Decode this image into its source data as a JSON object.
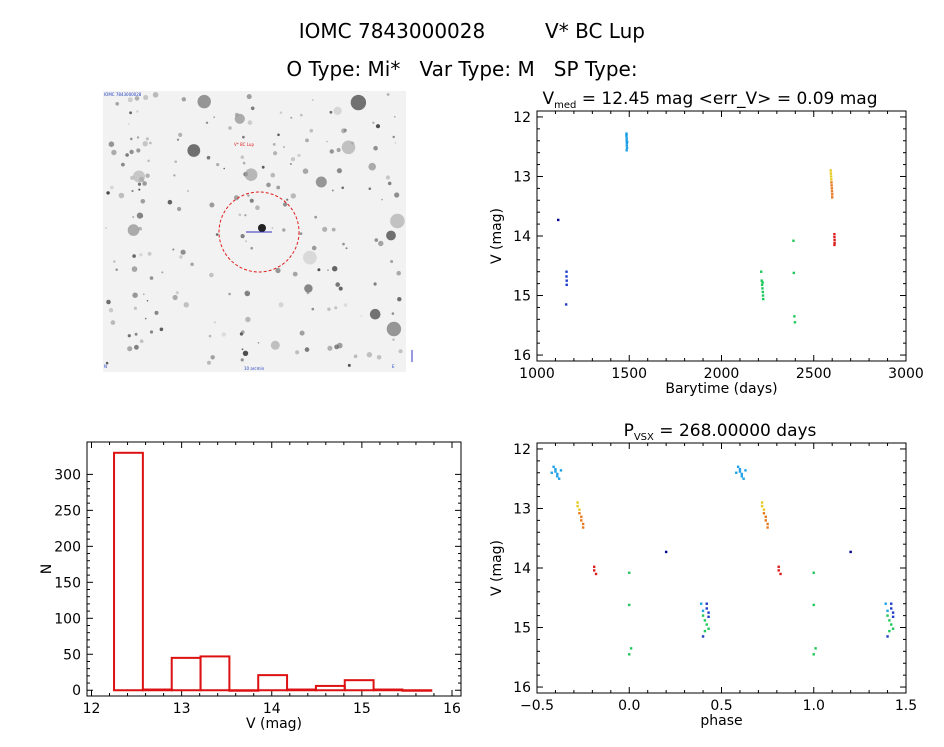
{
  "header": {
    "line1_left": "IOMC 7843000028",
    "line1_right": "V* BC Lup",
    "line2": "O Type: Mi*   Var Type: M   SP Type:"
  },
  "image_panel": {
    "overlay_top_left": "IOMC 7843000028",
    "overlay_target": "V* BC Lup",
    "overlay_bottom_center": "10 arcmin",
    "overlay_bottom_left": "N",
    "overlay_bottom_right": "E"
  },
  "chart_data": [
    {
      "id": "lightcurve",
      "type": "scatter",
      "title_prefix": "V",
      "title_sub": "med",
      "title_rest": " = 12.45 mag <err_V> = 0.09 mag",
      "xlabel": "Barytime (days)",
      "ylabel": "V (mag)",
      "xlim": [
        1000,
        3000
      ],
      "ylim": [
        16.1,
        11.9
      ],
      "xticks": [
        1000,
        1500,
        2000,
        2500,
        3000
      ],
      "yticks": [
        12,
        13,
        14,
        15,
        16
      ],
      "series": [
        {
          "name": "s1",
          "color": "#00008b",
          "points": [
            [
              1115,
              13.73
            ]
          ]
        },
        {
          "name": "s2",
          "color": "#1e3cc8",
          "points": [
            [
              1160,
              14.6
            ],
            [
              1160,
              14.68
            ],
            [
              1161,
              14.75
            ],
            [
              1161,
              14.82
            ],
            [
              1158,
              15.15
            ]
          ]
        },
        {
          "name": "s3",
          "color": "#1ea0e6",
          "points": [
            [
              1485,
              12.28
            ],
            [
              1485,
              12.32
            ],
            [
              1486,
              12.36
            ],
            [
              1486,
              12.4
            ],
            [
              1487,
              12.44
            ],
            [
              1487,
              12.48
            ],
            [
              1488,
              12.52
            ],
            [
              1486,
              12.56
            ],
            [
              1485,
              12.3
            ],
            [
              1489,
              12.42
            ]
          ]
        },
        {
          "name": "s4",
          "color": "#1ec85a",
          "points": [
            [
              2215,
              14.6
            ],
            [
              2218,
              14.75
            ],
            [
              2220,
              14.82
            ],
            [
              2222,
              14.88
            ],
            [
              2224,
              14.94
            ],
            [
              2225,
              15.0
            ],
            [
              2226,
              15.06
            ],
            [
              2223,
              14.78
            ],
            [
              2390,
              14.08
            ],
            [
              2392,
              14.62
            ],
            [
              2395,
              15.35
            ],
            [
              2398,
              15.45
            ]
          ]
        },
        {
          "name": "s5",
          "color": "#e6c81e",
          "points": [
            [
              2592,
              12.9
            ],
            [
              2593,
              12.95
            ],
            [
              2594,
              13.0
            ],
            [
              2595,
              13.05
            ]
          ]
        },
        {
          "name": "s6",
          "color": "#e6781e",
          "points": [
            [
              2596,
              13.1
            ],
            [
              2597,
              13.15
            ],
            [
              2598,
              13.2
            ],
            [
              2599,
              13.25
            ],
            [
              2600,
              13.3
            ],
            [
              2600,
              13.35
            ]
          ]
        },
        {
          "name": "s7",
          "color": "#dc1e1e",
          "points": [
            [
              2612,
              13.97
            ],
            [
              2612,
              14.02
            ],
            [
              2613,
              14.07
            ],
            [
              2613,
              14.12
            ],
            [
              2612,
              14.15
            ]
          ]
        }
      ]
    },
    {
      "id": "histogram",
      "type": "bar",
      "title": "",
      "xlabel": "V (mag)",
      "ylabel": "N",
      "xlim": [
        11.95,
        16.1
      ],
      "ylim": [
        -8,
        345
      ],
      "xticks": [
        12,
        13,
        14,
        15,
        16
      ],
      "yticks": [
        0,
        50,
        100,
        150,
        200,
        250,
        300
      ],
      "bin_width": 0.32,
      "bin_starts": [
        12.25,
        12.57,
        12.89,
        13.21,
        13.53,
        13.85,
        14.17,
        14.49,
        14.81,
        15.13,
        15.45
      ],
      "values": [
        330,
        1,
        45,
        47,
        0,
        21,
        1,
        6,
        14,
        1,
        0
      ],
      "color": "#dd1111"
    },
    {
      "id": "phased",
      "type": "scatter",
      "title_prefix": "P",
      "title_sub": "VSX",
      "title_rest": " = 268.00000 days",
      "xlabel": "phase",
      "ylabel": "V (mag)",
      "xlim": [
        -0.5,
        1.5
      ],
      "ylim": [
        16.1,
        11.9
      ],
      "xticks": [
        -0.5,
        0.0,
        0.5,
        1.0,
        1.5
      ],
      "xtick_labels": [
        "−0.5",
        "0.0",
        "0.5",
        "1.0",
        "1.5"
      ],
      "yticks": [
        12,
        13,
        14,
        15,
        16
      ],
      "series": [
        {
          "name": "s1",
          "color": "#00008b",
          "points": [
            [
              0.2,
              13.73
            ],
            [
              1.2,
              13.73
            ]
          ]
        },
        {
          "name": "s2",
          "color": "#1e3cc8",
          "points": [
            [
              0.42,
              14.6
            ],
            [
              0.42,
              14.68
            ],
            [
              0.43,
              14.75
            ],
            [
              0.43,
              14.82
            ],
            [
              0.4,
              15.15
            ],
            [
              1.42,
              14.6
            ],
            [
              1.42,
              14.68
            ],
            [
              1.43,
              14.75
            ],
            [
              1.43,
              14.82
            ],
            [
              1.4,
              15.15
            ]
          ]
        },
        {
          "name": "s3",
          "color": "#1ea0e6",
          "points": [
            [
              -0.41,
              12.3
            ],
            [
              -0.4,
              12.34
            ],
            [
              -0.4,
              12.38
            ],
            [
              -0.39,
              12.42
            ],
            [
              -0.39,
              12.46
            ],
            [
              -0.38,
              12.5
            ],
            [
              -0.42,
              12.4
            ],
            [
              -0.37,
              12.36
            ],
            [
              0.59,
              12.3
            ],
            [
              0.6,
              12.34
            ],
            [
              0.6,
              12.38
            ],
            [
              0.61,
              12.42
            ],
            [
              0.61,
              12.46
            ],
            [
              0.62,
              12.5
            ],
            [
              0.58,
              12.4
            ],
            [
              0.63,
              12.36
            ],
            [
              0.39,
              14.6
            ],
            [
              0.4,
              14.72
            ],
            [
              1.39,
              14.6
            ],
            [
              1.4,
              14.72
            ]
          ]
        },
        {
          "name": "s4",
          "color": "#1ec85a",
          "points": [
            [
              0.4,
              14.8
            ],
            [
              0.41,
              14.88
            ],
            [
              0.42,
              14.95
            ],
            [
              0.43,
              15.02
            ],
            [
              0.41,
              15.06
            ],
            [
              0.0,
              14.08
            ],
            [
              0.0,
              14.62
            ],
            [
              0.01,
              15.35
            ],
            [
              0.0,
              15.45
            ],
            [
              1.4,
              14.8
            ],
            [
              1.41,
              14.88
            ],
            [
              1.42,
              14.95
            ],
            [
              1.43,
              15.02
            ],
            [
              1.41,
              15.06
            ],
            [
              1.0,
              14.08
            ],
            [
              1.0,
              14.62
            ],
            [
              1.01,
              15.35
            ],
            [
              1.0,
              15.45
            ]
          ]
        },
        {
          "name": "s5",
          "color": "#e6c81e",
          "points": [
            [
              -0.28,
              12.9
            ],
            [
              -0.28,
              12.96
            ],
            [
              -0.27,
              13.02
            ],
            [
              0.72,
              12.9
            ],
            [
              0.72,
              12.96
            ],
            [
              0.73,
              13.02
            ]
          ]
        },
        {
          "name": "s6",
          "color": "#e6781e",
          "points": [
            [
              -0.27,
              13.08
            ],
            [
              -0.26,
              13.14
            ],
            [
              -0.26,
              13.2
            ],
            [
              -0.25,
              13.26
            ],
            [
              -0.25,
              13.32
            ],
            [
              0.73,
              13.08
            ],
            [
              0.74,
              13.14
            ],
            [
              0.74,
              13.2
            ],
            [
              0.75,
              13.26
            ],
            [
              0.75,
              13.32
            ]
          ]
        },
        {
          "name": "s7",
          "color": "#dc1e1e",
          "points": [
            [
              -0.19,
              13.98
            ],
            [
              -0.19,
              14.04
            ],
            [
              -0.18,
              14.1
            ],
            [
              0.81,
              13.98
            ],
            [
              0.81,
              14.04
            ],
            [
              0.82,
              14.1
            ]
          ]
        }
      ]
    }
  ]
}
